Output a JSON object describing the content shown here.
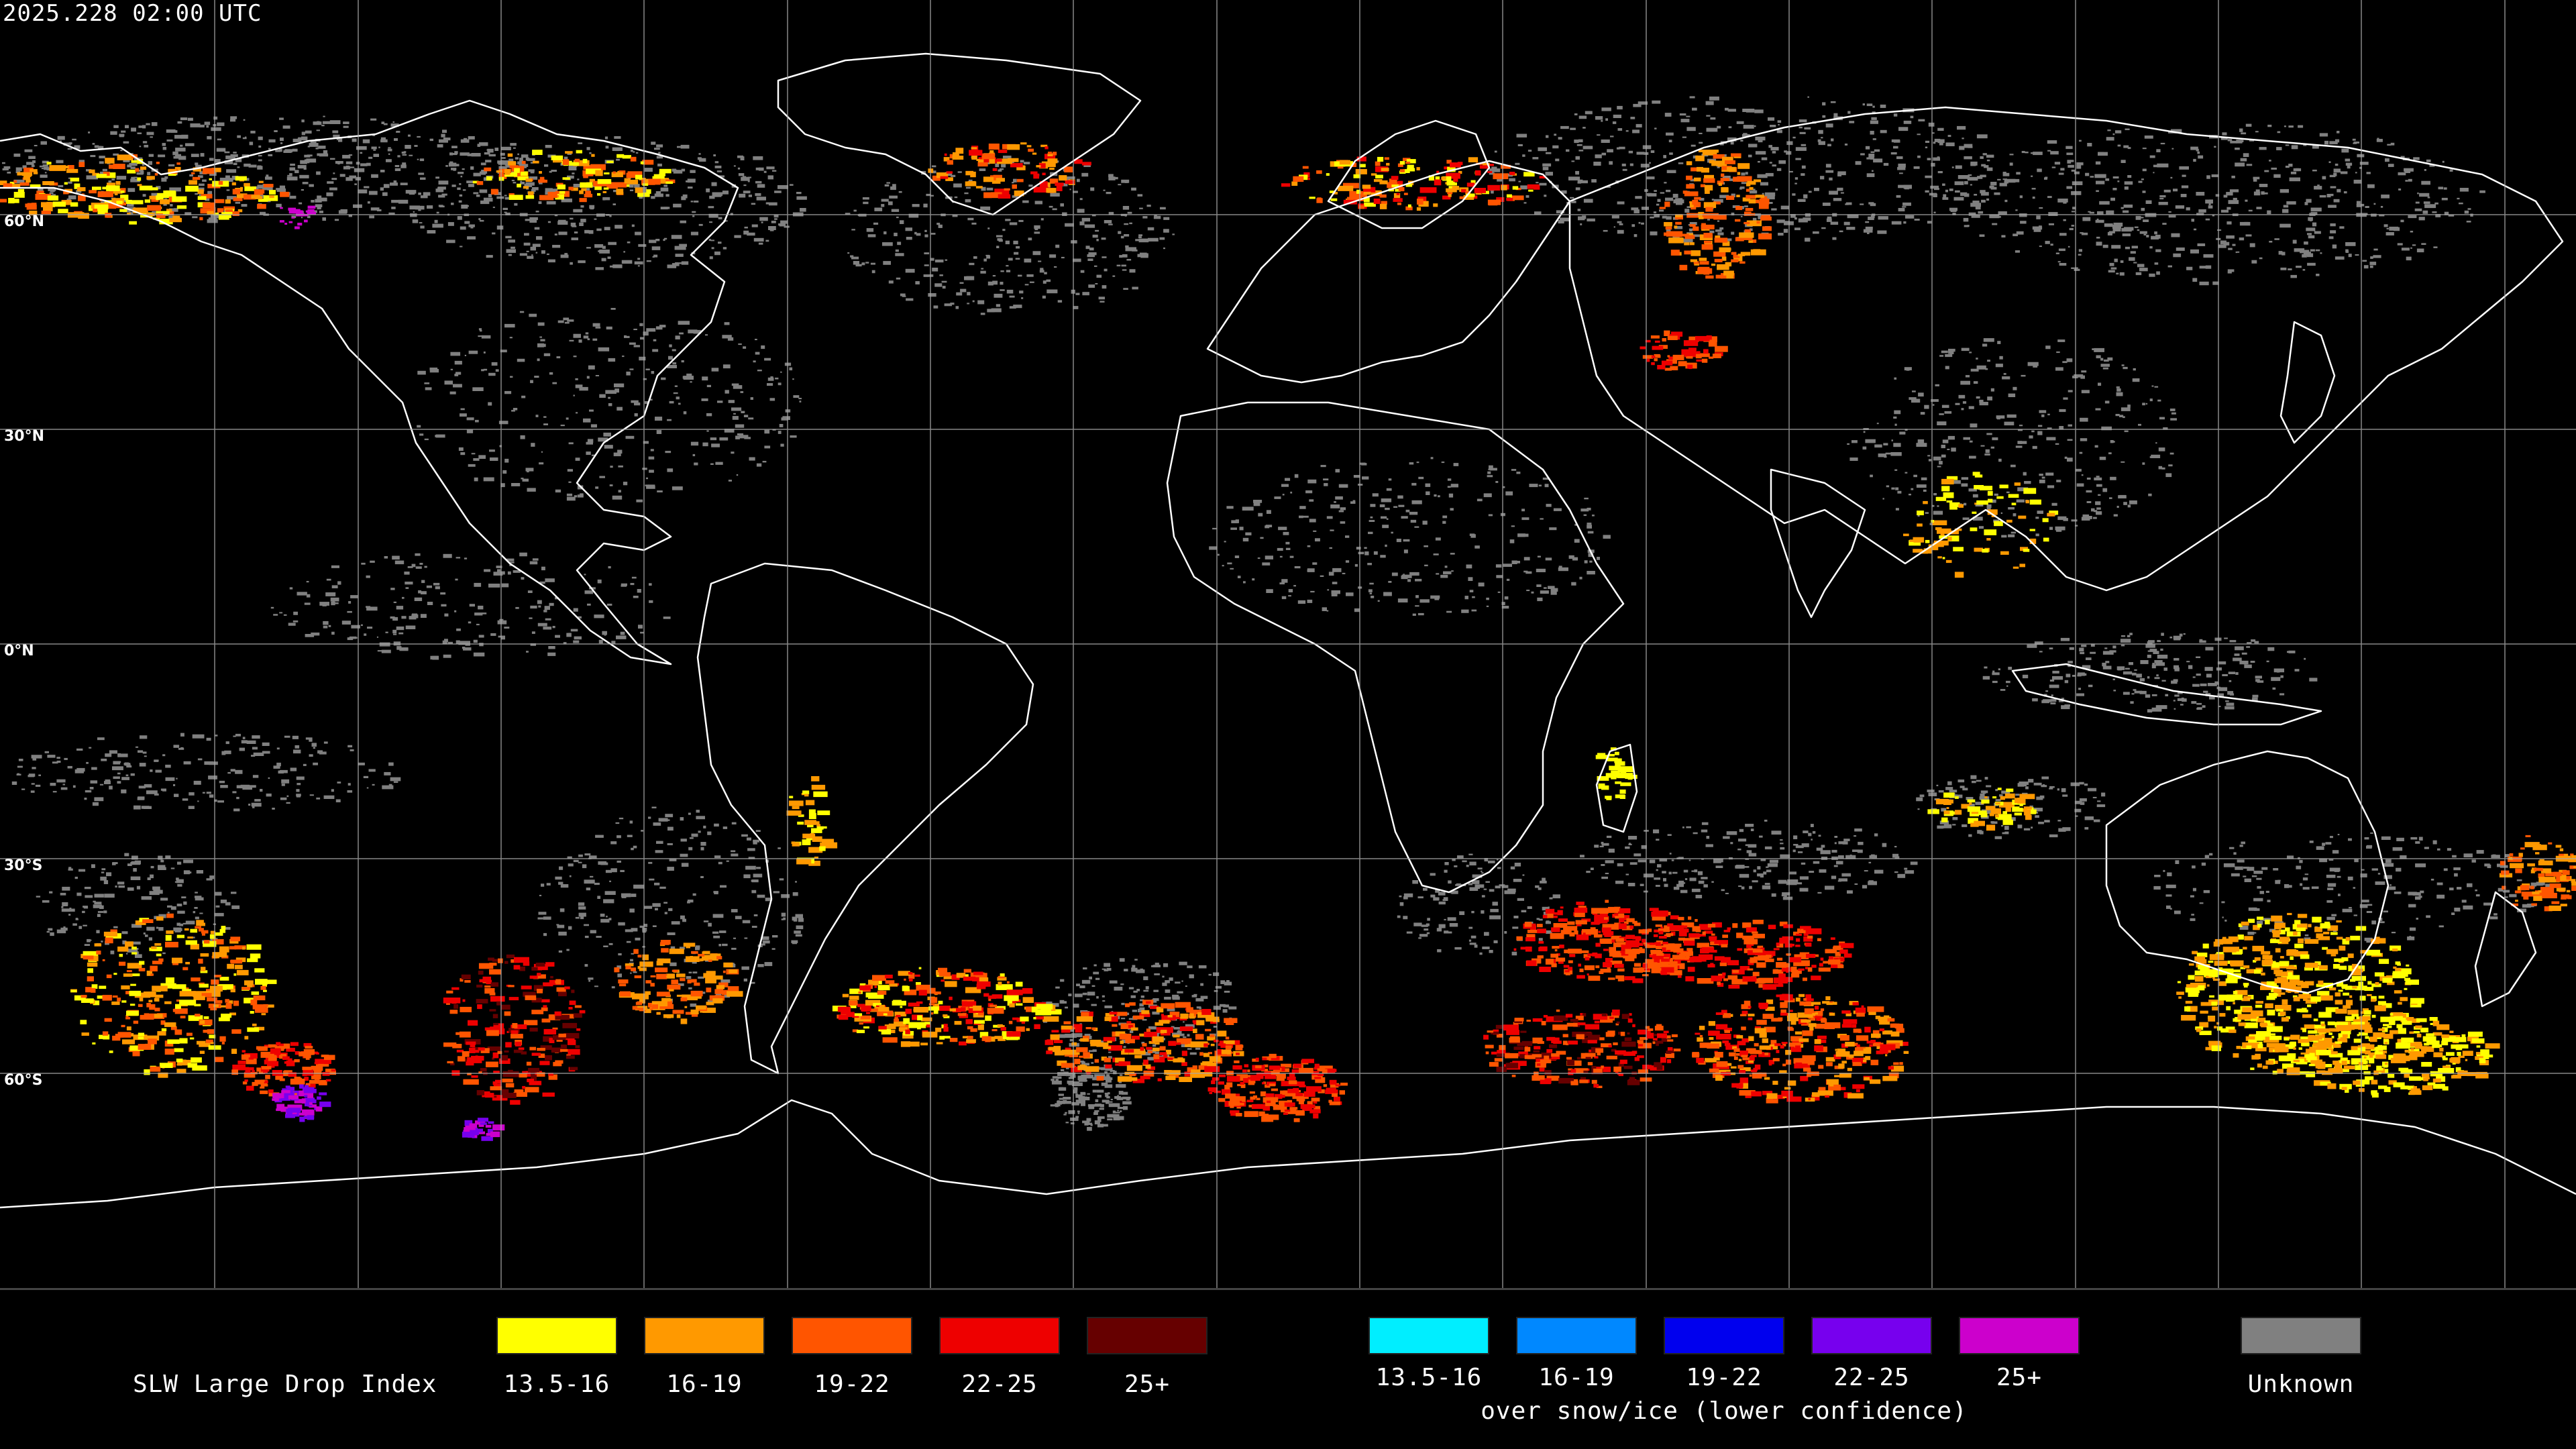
{
  "map": {
    "timestamp": "2025.228 02:00 UTC",
    "lat_labels": [
      "60°N",
      "30°N",
      "0°N",
      "30°S",
      "60°S"
    ]
  },
  "legend": {
    "title": "SLW Large Drop Index",
    "categories": [
      {
        "label": "13.5-16",
        "color": "#ffff00"
      },
      {
        "label": "16-19",
        "color": "#ff9900"
      },
      {
        "label": "19-22",
        "color": "#ff5500"
      },
      {
        "label": "22-25",
        "color": "#ee0000"
      },
      {
        "label": "25+",
        "color": "#660000"
      }
    ],
    "snow_ice_categories": [
      {
        "label": "13.5-16",
        "color": "#00eeff"
      },
      {
        "label": "16-19",
        "color": "#0088ff"
      },
      {
        "label": "19-22",
        "color": "#0000ee"
      },
      {
        "label": "22-25",
        "color": "#7700ee"
      },
      {
        "label": "25+",
        "color": "#cc00cc"
      }
    ],
    "snow_ice_note": "over snow/ice (lower confidence)",
    "unknown": {
      "label": "Unknown",
      "color": "#808080"
    }
  }
}
